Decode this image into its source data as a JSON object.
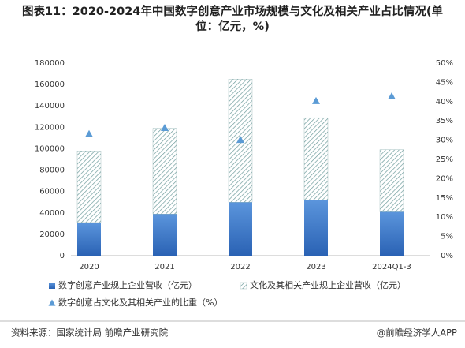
{
  "chart_data": {
    "type": "bar",
    "stacked": true,
    "title": "图表11：2020-2024年中国数字创意产业市场规模与文化及相关产业占比情况(单位：亿元，%)",
    "categories": [
      "2020",
      "2021",
      "2022",
      "2023",
      "2024Q1-3"
    ],
    "series": [
      {
        "name": "数字创意产业规上企业营收（亿元）",
        "type": "bar",
        "color": "#3a78c9",
        "values": [
          31000,
          39000,
          50000,
          52000,
          41000
        ]
      },
      {
        "name": "文化及其相关产业规上企业营收（亿元）",
        "type": "bar",
        "color": "#6e9c9c",
        "values": [
          67000,
          80000,
          115000,
          77000,
          58000
        ]
      },
      {
        "name": "数字创意占文化及其相关产业的比重（%）",
        "type": "scatter",
        "marker": "triangle",
        "axis": "y2",
        "color": "#5b9bd5",
        "values": [
          31.6,
          33.2,
          30.1,
          40.2,
          41.4
        ]
      }
    ],
    "ylim": [
      0,
      180000
    ],
    "yticks": [
      0,
      20000,
      40000,
      60000,
      80000,
      100000,
      120000,
      140000,
      160000,
      180000
    ],
    "y2lim": [
      0,
      50
    ],
    "y2ticks": [
      {
        "value": 0,
        "label": "0%"
      },
      {
        "value": 5,
        "label": "5%"
      },
      {
        "value": 10,
        "label": "10%"
      },
      {
        "value": 15,
        "label": "15%"
      },
      {
        "value": 20,
        "label": "20%"
      },
      {
        "value": 25,
        "label": "25%"
      },
      {
        "value": 30,
        "label": "30%"
      },
      {
        "value": 35,
        "label": "35%"
      },
      {
        "value": 40,
        "label": "40%"
      },
      {
        "value": 45,
        "label": "45%"
      },
      {
        "value": 50,
        "label": "50%"
      }
    ],
    "grid": false,
    "source": "资料来源：国家统计局 前瞻产业研究院",
    "credit": "@前瞻经济学人APP"
  }
}
